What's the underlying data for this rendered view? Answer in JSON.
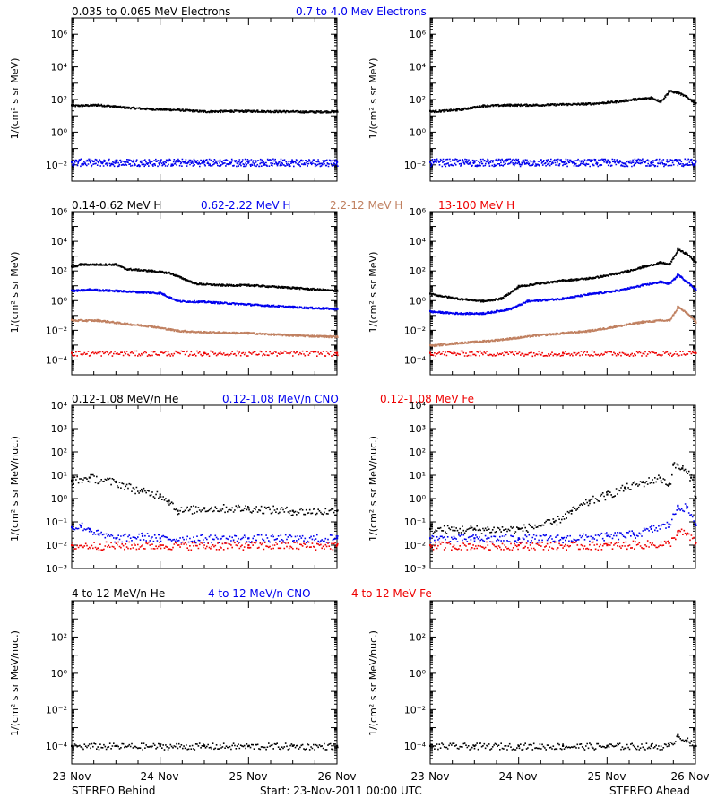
{
  "colors": {
    "black": "#000000",
    "blue": "#0000ee",
    "tan": "#c08060",
    "red": "#ee0000"
  },
  "row_titles": [
    [
      {
        "text": "0.035 to 0.065 MeV Electrons",
        "color": "#000000"
      },
      {
        "text": "0.7 to 4.0 Mev Electrons",
        "color": "#0000ee"
      }
    ],
    [
      {
        "text": "0.14-0.62 MeV H",
        "color": "#000000"
      },
      {
        "text": "0.62-2.22 MeV H",
        "color": "#0000ee"
      },
      {
        "text": "2.2-12 MeV H",
        "color": "#c08060"
      },
      {
        "text": "13-100 MeV H",
        "color": "#ee0000"
      }
    ],
    [
      {
        "text": "0.12-1.08 MeV/n He",
        "color": "#000000"
      },
      {
        "text": "0.12-1.08 MeV/n CNO",
        "color": "#0000ee"
      },
      {
        "text": "0.12-1.08 MeV Fe",
        "color": "#ee0000"
      }
    ],
    [
      {
        "text": "4 to 12 MeV/n He",
        "color": "#000000"
      },
      {
        "text": "4 to 12 MeV/n CNO",
        "color": "#0000ee"
      },
      {
        "text": "4 to 12 MeV Fe",
        "color": "#ee0000"
      }
    ]
  ],
  "ylabels": [
    "1/(cm² s sr MeV)",
    "1/(cm² s sr MeV)",
    "1/(cm² s sr MeV/nuc.)",
    "1/(cm² s sr MeV/nuc.)"
  ],
  "footer": {
    "left": "STEREO Behind",
    "center": "Start: 23-Nov-2011 00:00 UTC",
    "right": "STEREO Ahead"
  },
  "x_tick_labels": [
    "23-Nov",
    "24-Nov",
    "25-Nov",
    "26-Nov"
  ],
  "chart_data": [
    {
      "type": "scatter",
      "panel": "STEREO Behind electrons",
      "x_unit": "days since 23-Nov-2011 00:00 UTC",
      "xlim": [
        0,
        3
      ],
      "yscale": "log",
      "ylim": [
        0.001,
        10000000
      ],
      "ytick_exponents": [
        -2,
        0,
        2,
        4,
        6
      ],
      "series": [
        {
          "name": "0.035 to 0.065 MeV Electrons",
          "color": "#000000",
          "x": [
            0,
            0.3,
            0.6,
            0.9,
            1.2,
            1.5,
            1.8,
            2.1,
            2.4,
            2.7,
            3.0
          ],
          "y": [
            45,
            50,
            35,
            28,
            25,
            20,
            21,
            21,
            20,
            19,
            20
          ]
        },
        {
          "name": "0.7 to 4.0 Mev Electrons",
          "color": "#0000ee",
          "x": [
            0,
            0.5,
            1.0,
            1.5,
            2.0,
            2.5,
            3.0
          ],
          "y": [
            0.015,
            0.015,
            0.015,
            0.015,
            0.015,
            0.015,
            0.015
          ]
        }
      ]
    },
    {
      "type": "scatter",
      "panel": "STEREO Ahead electrons",
      "x_unit": "days since 23-Nov-2011 00:00 UTC",
      "xlim": [
        0,
        3
      ],
      "yscale": "log",
      "ylim": [
        0.001,
        10000000
      ],
      "ytick_exponents": [
        -2,
        0,
        2,
        4,
        6
      ],
      "series": [
        {
          "name": "0.035 to 0.065 MeV Electrons",
          "color": "#000000",
          "x": [
            0,
            0.3,
            0.6,
            0.9,
            1.2,
            1.5,
            1.8,
            2.1,
            2.3,
            2.5,
            2.6,
            2.7,
            2.8,
            2.9,
            3.0
          ],
          "y": [
            20,
            25,
            45,
            50,
            50,
            55,
            60,
            80,
            110,
            140,
            80,
            350,
            280,
            150,
            60
          ]
        },
        {
          "name": "0.7 to 4.0 Mev Electrons",
          "color": "#0000ee",
          "x": [
            0,
            0.5,
            1.0,
            1.5,
            2.0,
            2.5,
            3.0
          ],
          "y": [
            0.015,
            0.015,
            0.015,
            0.015,
            0.015,
            0.015,
            0.015
          ]
        }
      ]
    },
    {
      "type": "scatter",
      "panel": "STEREO Behind protons",
      "x_unit": "days since 23-Nov-2011 00:00 UTC",
      "xlim": [
        0,
        3
      ],
      "yscale": "log",
      "ylim": [
        1e-05,
        1000000
      ],
      "ytick_exponents": [
        -4,
        -2,
        0,
        2,
        4,
        6
      ],
      "series": [
        {
          "name": "0.14-0.62 MeV H",
          "color": "#000000",
          "x": [
            0,
            0.1,
            0.5,
            0.6,
            0.9,
            1.1,
            1.4,
            1.7,
            2.0,
            2.5,
            3.0
          ],
          "y": [
            200,
            300,
            300,
            150,
            110,
            80,
            15,
            12,
            12,
            8,
            5
          ]
        },
        {
          "name": "0.62-2.22 MeV H",
          "color": "#0000ee",
          "x": [
            0,
            0.2,
            0.5,
            0.8,
            1.0,
            1.2,
            1.5,
            2.0,
            2.5,
            3.0
          ],
          "y": [
            5,
            6,
            5,
            4,
            3.5,
            1,
            0.9,
            0.6,
            0.4,
            0.3
          ]
        },
        {
          "name": "2.2-12 MeV H",
          "color": "#c08060",
          "x": [
            0,
            0.3,
            0.6,
            0.9,
            1.2,
            1.5,
            2.0,
            2.5,
            3.0
          ],
          "y": [
            0.05,
            0.05,
            0.03,
            0.02,
            0.01,
            0.008,
            0.007,
            0.005,
            0.004
          ]
        },
        {
          "name": "13-100 MeV H",
          "color": "#ee0000",
          "x": [
            0,
            1.5,
            3.0
          ],
          "y": [
            0.0003,
            0.0003,
            0.0003
          ]
        }
      ]
    },
    {
      "type": "scatter",
      "panel": "STEREO Ahead protons",
      "x_unit": "days since 23-Nov-2011 00:00 UTC",
      "xlim": [
        0,
        3
      ],
      "yscale": "log",
      "ylim": [
        1e-05,
        1000000
      ],
      "ytick_exponents": [
        -4,
        -2,
        0,
        2,
        4,
        6
      ],
      "series": [
        {
          "name": "0.14-0.62 MeV H",
          "color": "#000000",
          "x": [
            0,
            0.3,
            0.6,
            0.8,
            1.0,
            1.2,
            1.5,
            1.8,
            2.1,
            2.4,
            2.6,
            2.7,
            2.8,
            2.9,
            3.0
          ],
          "y": [
            3,
            1.5,
            1,
            1.5,
            10,
            15,
            25,
            35,
            70,
            200,
            400,
            300,
            3000,
            1500,
            400
          ]
        },
        {
          "name": "0.62-2.22 MeV H",
          "color": "#0000ee",
          "x": [
            0,
            0.3,
            0.6,
            0.9,
            1.1,
            1.5,
            1.8,
            2.1,
            2.4,
            2.6,
            2.7,
            2.8,
            2.9,
            3.0
          ],
          "y": [
            0.2,
            0.15,
            0.15,
            0.3,
            1,
            1.5,
            3,
            5,
            12,
            20,
            15,
            60,
            20,
            6
          ]
        },
        {
          "name": "2.2-12 MeV H",
          "color": "#c08060",
          "x": [
            0,
            0.3,
            0.6,
            0.9,
            1.2,
            1.5,
            1.8,
            2.1,
            2.4,
            2.6,
            2.7,
            2.8,
            2.9,
            3.0
          ],
          "y": [
            0.001,
            0.0015,
            0.002,
            0.003,
            0.005,
            0.007,
            0.01,
            0.02,
            0.04,
            0.05,
            0.05,
            0.4,
            0.15,
            0.04
          ]
        },
        {
          "name": "13-100 MeV H",
          "color": "#ee0000",
          "x": [
            0,
            1.5,
            3.0
          ],
          "y": [
            0.0003,
            0.0003,
            0.0003
          ]
        }
      ]
    },
    {
      "type": "scatter",
      "panel": "STEREO Behind heavy ions",
      "x_unit": "days since 23-Nov-2011 00:00 UTC",
      "xlim": [
        0,
        3
      ],
      "yscale": "log",
      "ylim": [
        0.001,
        10000
      ],
      "ytick_exponents": [
        -3,
        -2,
        -1,
        0,
        1,
        2,
        3,
        4
      ],
      "series": [
        {
          "name": "0.12-1.08 MeV/n He",
          "color": "#000000",
          "x": [
            0,
            0.2,
            0.5,
            0.8,
            1.0,
            1.1,
            1.2,
            1.5,
            2.0,
            2.5,
            3.0
          ],
          "y": [
            6,
            8,
            5,
            2,
            1.5,
            0.8,
            0.3,
            0.4,
            0.4,
            0.3,
            0.3
          ]
        },
        {
          "name": "0.12-1.08 MeV/n CNO",
          "color": "#0000ee",
          "x": [
            0,
            0.1,
            0.2,
            0.3,
            0.5,
            0.8,
            1.0,
            2.0,
            3.0
          ],
          "y": [
            0.06,
            0.07,
            0.05,
            0.03,
            0.02,
            0.025,
            0.02,
            0.02,
            0.02
          ]
        },
        {
          "name": "0.12-1.08 MeV Fe",
          "color": "#ee0000",
          "x": [
            0,
            1.0,
            2.0,
            3.0
          ],
          "y": [
            0.01,
            0.01,
            0.01,
            0.01
          ]
        }
      ]
    },
    {
      "type": "scatter",
      "panel": "STEREO Ahead heavy ions",
      "x_unit": "days since 23-Nov-2011 00:00 UTC",
      "xlim": [
        0,
        3
      ],
      "yscale": "log",
      "ylim": [
        0.001,
        10000
      ],
      "ytick_exponents": [
        -3,
        -2,
        -1,
        0,
        1,
        2,
        3,
        4
      ],
      "series": [
        {
          "name": "0.12-1.08 MeV/n He",
          "color": "#000000",
          "x": [
            0,
            0.5,
            1.0,
            1.4,
            1.6,
            1.8,
            2.0,
            2.2,
            2.4,
            2.6,
            2.7,
            2.75,
            2.85,
            2.95,
            3.0
          ],
          "y": [
            0.05,
            0.05,
            0.05,
            0.1,
            0.3,
            0.8,
            1.5,
            3,
            5,
            8,
            4,
            30,
            20,
            8,
            1.2
          ]
        },
        {
          "name": "0.12-1.08 MeV/n CNO",
          "color": "#0000ee",
          "x": [
            0,
            0.5,
            1.0,
            1.5,
            2.0,
            2.3,
            2.5,
            2.7,
            2.8,
            2.9,
            3.0
          ],
          "y": [
            0.02,
            0.02,
            0.02,
            0.02,
            0.025,
            0.03,
            0.05,
            0.08,
            0.5,
            0.4,
            0.08
          ]
        },
        {
          "name": "0.12-1.08 MeV Fe",
          "color": "#ee0000",
          "x": [
            0,
            1.0,
            2.0,
            2.7,
            2.8,
            2.9,
            3.0
          ],
          "y": [
            0.01,
            0.01,
            0.01,
            0.012,
            0.04,
            0.03,
            0.012
          ]
        }
      ]
    },
    {
      "type": "scatter",
      "panel": "STEREO Behind high-energy heavy ions",
      "x_unit": "days since 23-Nov-2011 00:00 UTC",
      "xlim": [
        0,
        3
      ],
      "yscale": "log",
      "ylim": [
        1e-05,
        10000
      ],
      "ytick_exponents": [
        -4,
        -2,
        0,
        2
      ],
      "series": [
        {
          "name": "4 to 12 MeV/n He",
          "color": "#000000",
          "x": [
            0,
            0.5,
            1.0,
            1.5,
            2.0,
            2.5,
            3.0
          ],
          "y": [
            0.0001,
            0.0001,
            0.0001,
            0.0001,
            0.0001,
            0.0001,
            0.0001
          ]
        }
      ]
    },
    {
      "type": "scatter",
      "panel": "STEREO Ahead high-energy heavy ions",
      "x_unit": "days since 23-Nov-2011 00:00 UTC",
      "xlim": [
        0,
        3
      ],
      "yscale": "log",
      "ylim": [
        1e-05,
        10000
      ],
      "ytick_exponents": [
        -4,
        -2,
        0,
        2
      ],
      "series": [
        {
          "name": "4 to 12 MeV/n He",
          "color": "#000000",
          "x": [
            0,
            0.5,
            1.0,
            1.5,
            2.0,
            2.5,
            2.7,
            2.8,
            2.9,
            3.0
          ],
          "y": [
            0.0001,
            0.0001,
            0.0001,
            0.0001,
            0.0001,
            0.0001,
            0.0001,
            0.0004,
            0.0002,
            0.0001
          ]
        }
      ]
    }
  ]
}
